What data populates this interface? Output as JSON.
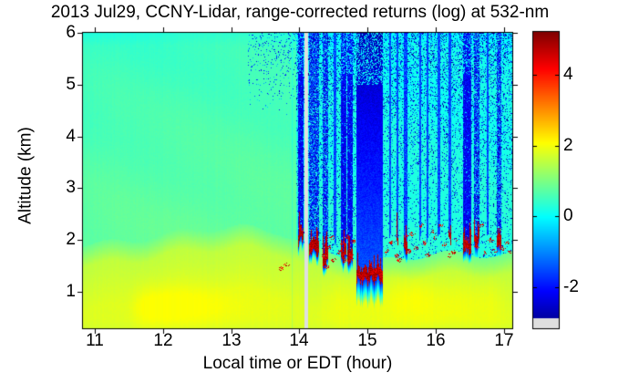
{
  "title": "2013 Jul29, CCNY-Lidar, range-corrected returns (log) at 532-nm",
  "axes": {
    "xlabel": "Local time or EDT (hour)",
    "ylabel": "Altitude (km)",
    "xlim": [
      10.826,
      17.121
    ],
    "ylim": [
      0.296,
      6.0
    ],
    "x_ticks": [
      11,
      12,
      13,
      14,
      15,
      16,
      17
    ],
    "y_ticks": [
      6,
      5,
      4,
      3,
      2,
      1
    ]
  },
  "colorbar": {
    "ticks": [
      4,
      2,
      0,
      -2
    ],
    "caxis": [
      -3.15,
      5.2
    ],
    "colormap": "jet",
    "missing_below": -2.87,
    "missing_color": "#dfdfdf"
  },
  "chart_data": {
    "type": "heatmap",
    "x_unit": "hour (EDT)",
    "y_unit": "km",
    "z_unit": "log range-corrected lidar return",
    "boundary_layer_top": [
      [
        10.83,
        1.95
      ],
      [
        11.4,
        2.0
      ],
      [
        12.0,
        2.1
      ],
      [
        12.6,
        2.18
      ],
      [
        13.2,
        2.22
      ],
      [
        13.7,
        2.18
      ],
      [
        13.95,
        2.05
      ],
      [
        14.1,
        1.9
      ],
      [
        14.4,
        1.8
      ],
      [
        14.8,
        1.7
      ],
      [
        15.1,
        1.55
      ],
      [
        15.5,
        1.62
      ],
      [
        15.9,
        1.68
      ],
      [
        16.3,
        1.72
      ],
      [
        16.8,
        1.75
      ],
      [
        17.13,
        1.75
      ]
    ],
    "field": {
      "above_bl_pre14": 0.8,
      "above_bl_post14": 0.3,
      "lapse_pre14_per_km": 0.09,
      "lapse_post14_per_km": 0.05,
      "transition_depth_km": 0.4,
      "transition_v_top": 0.85,
      "transition_v_bottom": 1.55,
      "below_slope_per_km": 0.3,
      "below_v_max": 1.8,
      "bottom_fade_km": 0.45,
      "bottom_fade_amount": 0.5
    },
    "yellow_pockets": [
      {
        "t0": 11.45,
        "t1": 13.95,
        "alt": 0.72,
        "sig": 0.4,
        "amp": 0.35,
        "modulated": true
      },
      {
        "t0": 14.25,
        "t1": 17.13,
        "alt": 0.85,
        "sig": 0.48,
        "amp": 0.22,
        "modulated": false
      },
      {
        "t0": 15.25,
        "t1": 16.05,
        "alt": 0.95,
        "sig": 0.5,
        "amp": 0.15,
        "modulated": false
      }
    ],
    "gray_gap": {
      "t0": 14.075,
      "t1": 14.125
    },
    "cloud_stripes": [
      {
        "t0": 13.975,
        "t1": 14.065,
        "base": 2.05,
        "type": "deep",
        "red": true
      },
      {
        "t0": 14.135,
        "t1": 14.285,
        "base": 1.85,
        "type": "speckled",
        "red": true
      },
      {
        "t0": 14.335,
        "t1": 14.415,
        "base": 1.62,
        "type": "speckled",
        "red": true
      },
      {
        "t0": 14.5,
        "t1": 14.545,
        "base": 1.95,
        "type": "thin",
        "red": false
      },
      {
        "t0": 14.615,
        "t1": 14.695,
        "base": 1.72,
        "type": "deep",
        "red": true
      },
      {
        "t0": 14.705,
        "t1": 14.78,
        "base": 1.65,
        "type": "deep",
        "red": true
      },
      {
        "t0": 14.835,
        "t1": 15.225,
        "base": 1.35,
        "type": "wide",
        "red": true
      },
      {
        "t0": 15.315,
        "t1": 15.35,
        "base": 2.0,
        "type": "thin",
        "red": false
      },
      {
        "t0": 15.42,
        "t1": 15.455,
        "base": 1.95,
        "type": "thin",
        "red": true
      },
      {
        "t0": 15.535,
        "t1": 15.585,
        "base": 1.9,
        "type": "medium",
        "red": true
      },
      {
        "t0": 15.76,
        "t1": 15.79,
        "base": 2.05,
        "type": "thin",
        "red": false
      },
      {
        "t0": 15.865,
        "t1": 15.895,
        "base": 2.0,
        "type": "thin",
        "red": false
      },
      {
        "t0": 16.03,
        "t1": 16.06,
        "base": 2.15,
        "type": "thin",
        "red": false
      },
      {
        "t0": 16.19,
        "t1": 16.22,
        "base": 2.05,
        "type": "thin",
        "red": true
      },
      {
        "t0": 16.4,
        "t1": 16.525,
        "base": 1.85,
        "type": "deep",
        "red": true
      },
      {
        "t0": 16.565,
        "t1": 16.645,
        "base": 2.0,
        "type": "speckled",
        "red": true
      },
      {
        "t0": 16.745,
        "t1": 16.775,
        "base": 2.1,
        "type": "thin",
        "red": false
      },
      {
        "t0": 16.9,
        "t1": 16.96,
        "base": 1.95,
        "type": "speckled",
        "red": true
      },
      {
        "t0": 13.885,
        "t1": 13.905,
        "base": 0,
        "type": "faint",
        "red": false
      }
    ],
    "red_blobs": [
      [
        13.72,
        1.45
      ],
      [
        13.8,
        1.52
      ],
      [
        14.36,
        1.7
      ],
      [
        14.4,
        1.5
      ],
      [
        14.43,
        1.86
      ],
      [
        14.47,
        2.05
      ],
      [
        14.5,
        1.62
      ],
      [
        14.58,
        1.78
      ],
      [
        14.62,
        1.95
      ],
      [
        14.66,
        1.62
      ],
      [
        14.7,
        2.08
      ],
      [
        14.74,
        1.72
      ],
      [
        14.78,
        1.98
      ],
      [
        15.28,
        1.8
      ],
      [
        15.34,
        1.95
      ],
      [
        15.43,
        1.7
      ],
      [
        15.47,
        1.62
      ],
      [
        15.56,
        2.1
      ],
      [
        15.6,
        1.8
      ],
      [
        15.65,
        2.12
      ],
      [
        15.7,
        1.85
      ],
      [
        15.78,
        2.28
      ],
      [
        15.82,
        1.95
      ],
      [
        15.88,
        1.72
      ],
      [
        15.95,
        2.18
      ],
      [
        15.98,
        2.05
      ],
      [
        16.07,
        2.28
      ],
      [
        16.12,
        1.92
      ],
      [
        16.18,
        1.7
      ],
      [
        16.25,
        1.78
      ],
      [
        16.3,
        2.02
      ],
      [
        16.6,
        1.88
      ],
      [
        16.66,
        2.28
      ],
      [
        16.7,
        1.75
      ],
      [
        16.8,
        2.0
      ],
      [
        16.86,
        1.8
      ],
      [
        16.98,
        1.85
      ],
      [
        17.04,
        1.95
      ],
      [
        17.08,
        1.8
      ]
    ]
  }
}
